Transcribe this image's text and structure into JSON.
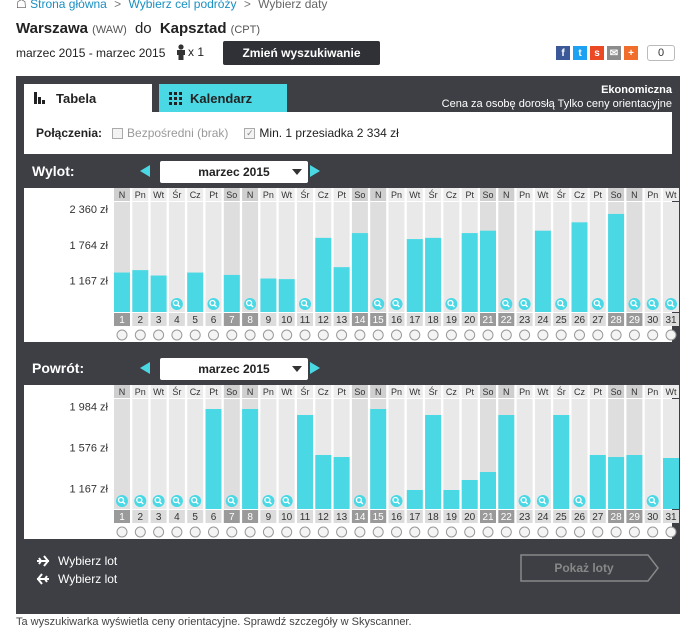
{
  "breadcrumb": {
    "home": "Strona główna",
    "step1": "Wybierz cel podróży",
    "step2": "Wybierz daty",
    "sep": ">"
  },
  "route": {
    "from": "Warszawa",
    "from_code": "(WAW)",
    "connector": "do",
    "to": "Kapsztad",
    "to_code": "(CPT)"
  },
  "dates_text": "marzec 2015 - marzec 2015",
  "passengers": "x 1",
  "change_search_label": "Zmień wyszukiwanie",
  "share": {
    "count": "0",
    "icons": [
      "facebook-icon",
      "twitter-icon",
      "stumbleupon-icon",
      "email-icon",
      "plus-icon"
    ],
    "colors": [
      "#3b5998",
      "#1da1f2",
      "#eb4924",
      "#8c8c8c",
      "#f06d2b"
    ]
  },
  "tabs": {
    "table": "Tabela",
    "calendar": "Kalendarz"
  },
  "fare": {
    "class": "Ekonomiczna",
    "note": "Cena za osobę dorosłą Tylko ceny orientacyjne"
  },
  "connections": {
    "label": "Połączenia:",
    "direct": "Bezpośredni (brak)",
    "one_stop": "Min. 1 przesiadka 2 334 zł"
  },
  "outbound": {
    "title": "Wylot:",
    "month": "marzec 2015"
  },
  "return": {
    "title": "Powrót:",
    "month": "marzec 2015"
  },
  "legend": {
    "outbound": "Wybierz lot",
    "return": "Wybierz lot"
  },
  "show_flights_label": "Pokaż loty",
  "footer_text": "Ta wyszukiwarka wyświetla ceny orientacyjne. Sprawdź szczegóły w Skyscanner.",
  "colors": {
    "accent": "#4ad8e5",
    "dark": "#3d3f44",
    "weekend_stripe": "#e9e9e9"
  },
  "chart_data": [
    {
      "type": "bar",
      "name": "outbound",
      "weekdays": [
        "N",
        "Pn",
        "Wt",
        "Śr",
        "Cz",
        "Pt",
        "So",
        "N",
        "Pn",
        "Wt",
        "Śr",
        "Cz",
        "Pt",
        "So",
        "N",
        "Pn",
        "Wt",
        "Śr",
        "Cz",
        "Pt",
        "So",
        "N",
        "Pn",
        "Wt",
        "Śr",
        "Cz",
        "Pt",
        "So",
        "N",
        "Pn",
        "Wt"
      ],
      "days": [
        "1",
        "2",
        "3",
        "4",
        "5",
        "6",
        "7",
        "8",
        "9",
        "10",
        "11",
        "12",
        "13",
        "14",
        "15",
        "16",
        "17",
        "18",
        "19",
        "20",
        "21",
        "22",
        "23",
        "24",
        "25",
        "26",
        "27",
        "28",
        "29",
        "30",
        "31"
      ],
      "weekend_days": [
        1,
        7,
        8,
        14,
        15,
        21,
        22,
        28,
        29
      ],
      "values": [
        1300,
        1340,
        1250,
        null,
        1300,
        null,
        1260,
        null,
        1200,
        1190,
        null,
        1880,
        1390,
        1960,
        null,
        null,
        1860,
        1880,
        null,
        1960,
        2000,
        null,
        null,
        2000,
        null,
        2140,
        null,
        2280,
        null,
        null,
        null
      ],
      "yticks": [
        "2 360 zł",
        "1 764 zł",
        "1 167 zł"
      ],
      "ytick_values": [
        2360,
        1764,
        1167
      ],
      "ylim": [
        640,
        2480
      ]
    },
    {
      "type": "bar",
      "name": "return",
      "weekdays": [
        "N",
        "Pn",
        "Wt",
        "Śr",
        "Cz",
        "Pt",
        "So",
        "N",
        "Pn",
        "Wt",
        "Śr",
        "Cz",
        "Pt",
        "So",
        "N",
        "Pn",
        "Wt",
        "Śr",
        "Cz",
        "Pt",
        "So",
        "N",
        "Pn",
        "Wt",
        "Śr",
        "Cz",
        "Pt",
        "So",
        "N",
        "Pn",
        "Wt"
      ],
      "days": [
        "1",
        "2",
        "3",
        "4",
        "5",
        "6",
        "7",
        "8",
        "9",
        "10",
        "11",
        "12",
        "13",
        "14",
        "15",
        "16",
        "17",
        "18",
        "19",
        "20",
        "21",
        "22",
        "23",
        "24",
        "25",
        "26",
        "27",
        "28",
        "29",
        "30",
        "31"
      ],
      "weekend_days": [
        1,
        7,
        8,
        14,
        15,
        21,
        22,
        28,
        29
      ],
      "values": [
        null,
        null,
        null,
        null,
        null,
        1960,
        null,
        1960,
        null,
        null,
        1900,
        1500,
        1480,
        null,
        1960,
        null,
        1150,
        1900,
        1150,
        1250,
        1330,
        1900,
        null,
        null,
        1900,
        null,
        1500,
        1480,
        1500,
        null,
        1470
      ],
      "yticks": [
        "1 984 zł",
        "1 576 zł",
        "1 167 zł"
      ],
      "ytick_values": [
        1984,
        1576,
        1167
      ],
      "ylim": [
        960,
        2060
      ]
    }
  ]
}
